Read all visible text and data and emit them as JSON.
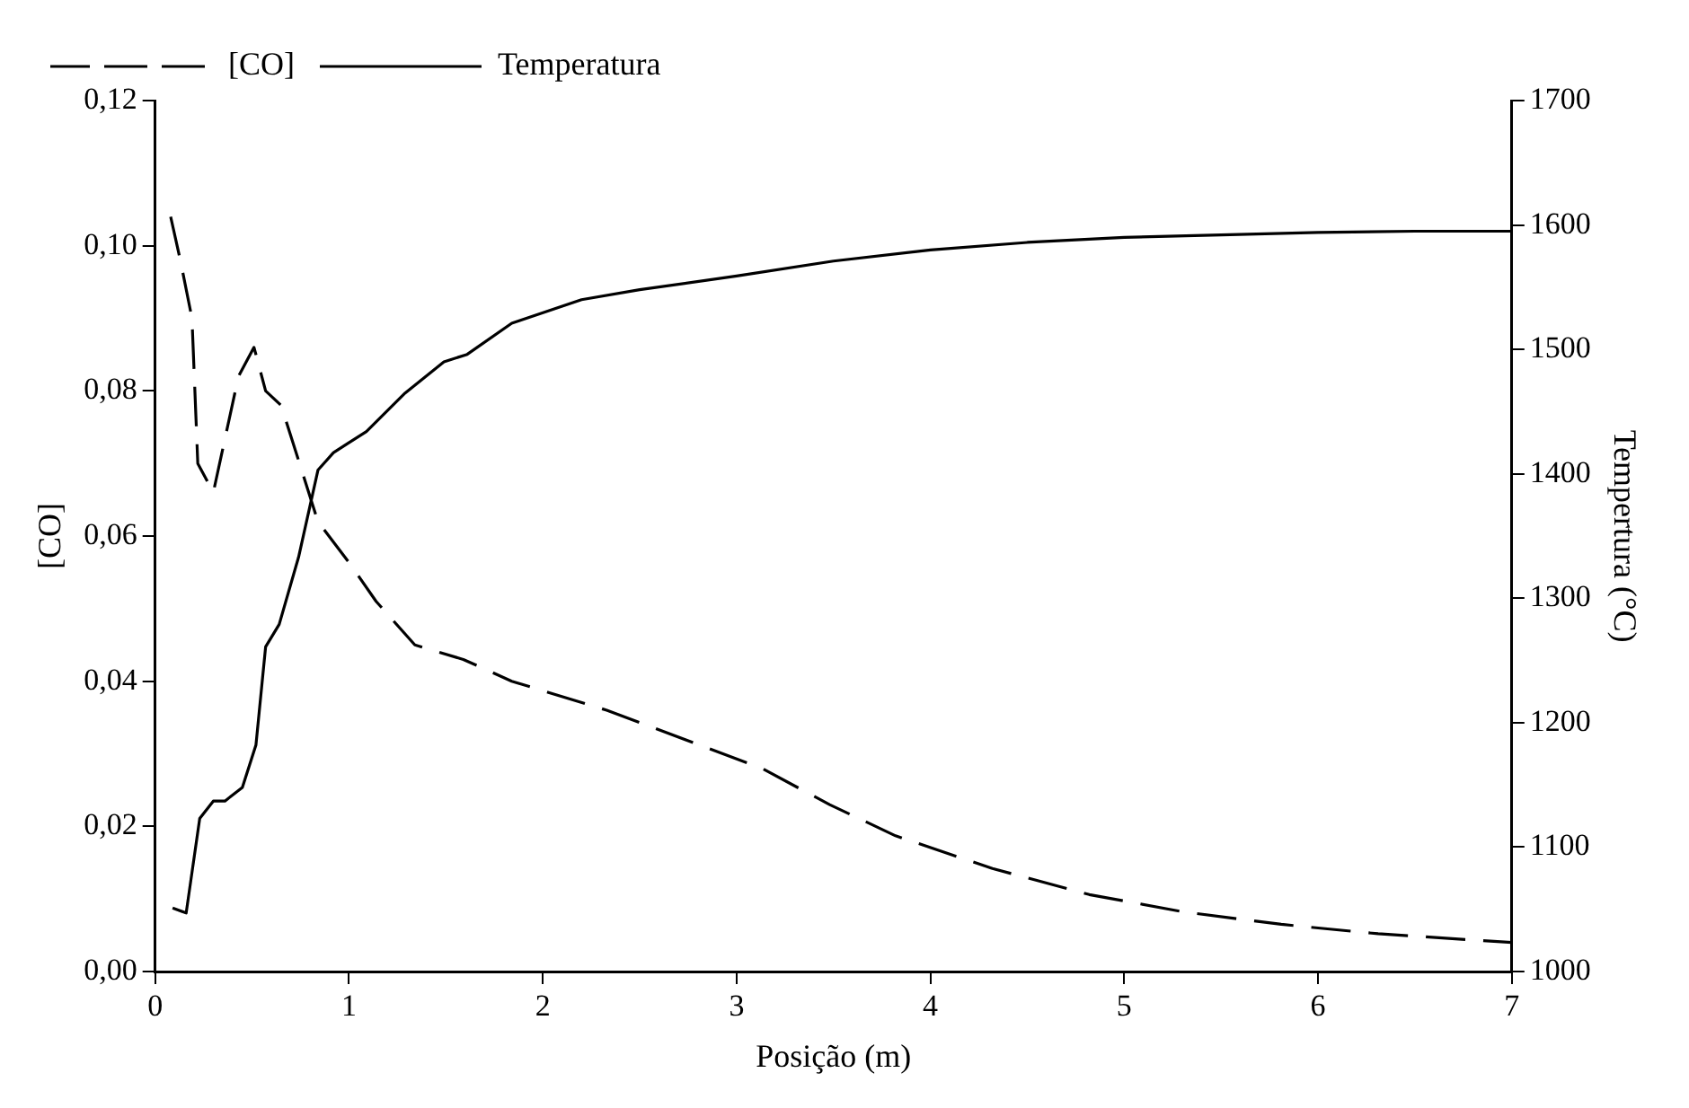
{
  "chart_data": {
    "type": "line",
    "xlabel": "Posição (m)",
    "ylabel": "[CO]",
    "y2label": "Tempertura (°C)",
    "legend": "top left",
    "grid": false,
    "marker": "none",
    "xlim": [
      0,
      7
    ],
    "xticks": [
      0,
      1,
      2,
      3,
      4,
      5,
      6,
      7
    ],
    "ylim": [
      0,
      0.12
    ],
    "yticks": [
      {
        "value": 0,
        "label": "0,00"
      },
      {
        "value": 0.02,
        "label": "0,02"
      },
      {
        "value": 0.04,
        "label": "0,04"
      },
      {
        "value": 0.06,
        "label": "0,06"
      },
      {
        "value": 0.08,
        "label": "0,08"
      },
      {
        "value": 0.1,
        "label": "0,10"
      },
      {
        "value": 0.12,
        "label": "0,12"
      }
    ],
    "y2lim": [
      1000,
      1700
    ],
    "y2ticks": [
      1000,
      1100,
      1200,
      1300,
      1400,
      1500,
      1600,
      1700
    ],
    "series": [
      {
        "name": "[CO]",
        "color": "#000000",
        "line_style": "dashed",
        "axis": "y",
        "x": [
          0.08,
          0.13,
          0.19,
          0.22,
          0.3,
          0.43,
          0.51,
          0.57,
          0.65,
          0.84,
          1.01,
          1.14,
          1.34,
          1.59,
          1.84,
          2.33,
          2.83,
          3.13,
          3.48,
          3.82,
          4.32,
          4.82,
          5.31,
          5.81,
          6.31,
          7
        ],
        "values": [
          0.104,
          0.098,
          0.09,
          0.07,
          0.066,
          0.082,
          0.086,
          0.08,
          0.078,
          0.062,
          0.056,
          0.051,
          0.045,
          0.043,
          0.04,
          0.036,
          0.031,
          0.028,
          0.023,
          0.0187,
          0.0142,
          0.0106,
          0.0082,
          0.0065,
          0.0052,
          0.004
        ]
      },
      {
        "name": "Temperatura",
        "color": "#000000",
        "line_style": "solid",
        "axis": "y2",
        "x": [
          0.09,
          0.16,
          0.23,
          0.3,
          0.36,
          0.45,
          0.52,
          0.57,
          0.64,
          0.74,
          0.84,
          0.92,
          0.99,
          1.09,
          1.29,
          1.49,
          1.61,
          1.84,
          2.2,
          2.5,
          3,
          3.5,
          4,
          4.5,
          5,
          5.5,
          6,
          6.5,
          7
        ],
        "values": [
          1051,
          1047,
          1123,
          1137,
          1137,
          1148,
          1182,
          1261,
          1279,
          1333,
          1403,
          1417,
          1424,
          1434,
          1465,
          1490,
          1496,
          1521,
          1540,
          1548,
          1559,
          1571,
          1580,
          1586,
          1590,
          1592,
          1594,
          1595,
          1595
        ]
      }
    ]
  }
}
